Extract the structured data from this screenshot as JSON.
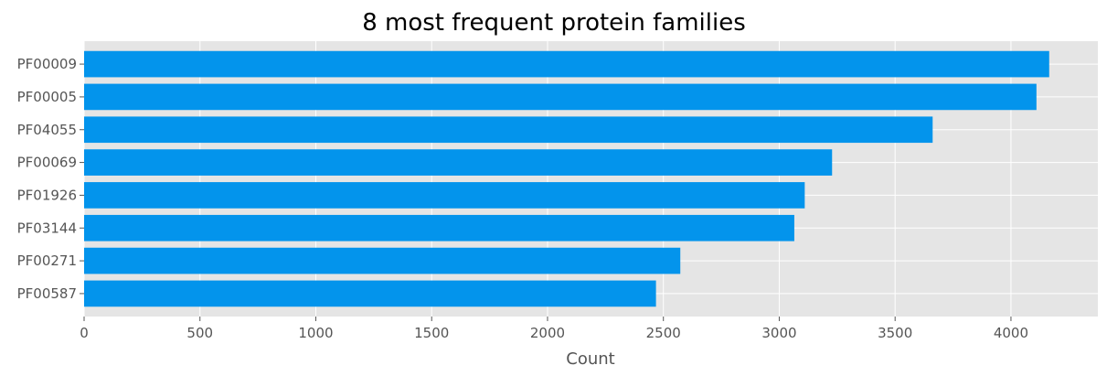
{
  "chart_data": {
    "type": "bar",
    "orientation": "horizontal",
    "title": "8 most frequent protein families",
    "xlabel": "Count",
    "ylabel": "",
    "categories": [
      "PF00009",
      "PF00005",
      "PF04055",
      "PF00069",
      "PF01926",
      "PF03144",
      "PF00271",
      "PF00587"
    ],
    "values": [
      4165,
      4110,
      3662,
      3228,
      3110,
      3065,
      2573,
      2468
    ],
    "xlim": [
      0,
      4375
    ],
    "xticks": [
      0,
      500,
      1000,
      1500,
      2000,
      2500,
      3000,
      3500,
      4000
    ],
    "grid": true,
    "bar_color": "#0394ec",
    "background_color": "#e5e5e5",
    "grid_color": "#ffffff"
  }
}
